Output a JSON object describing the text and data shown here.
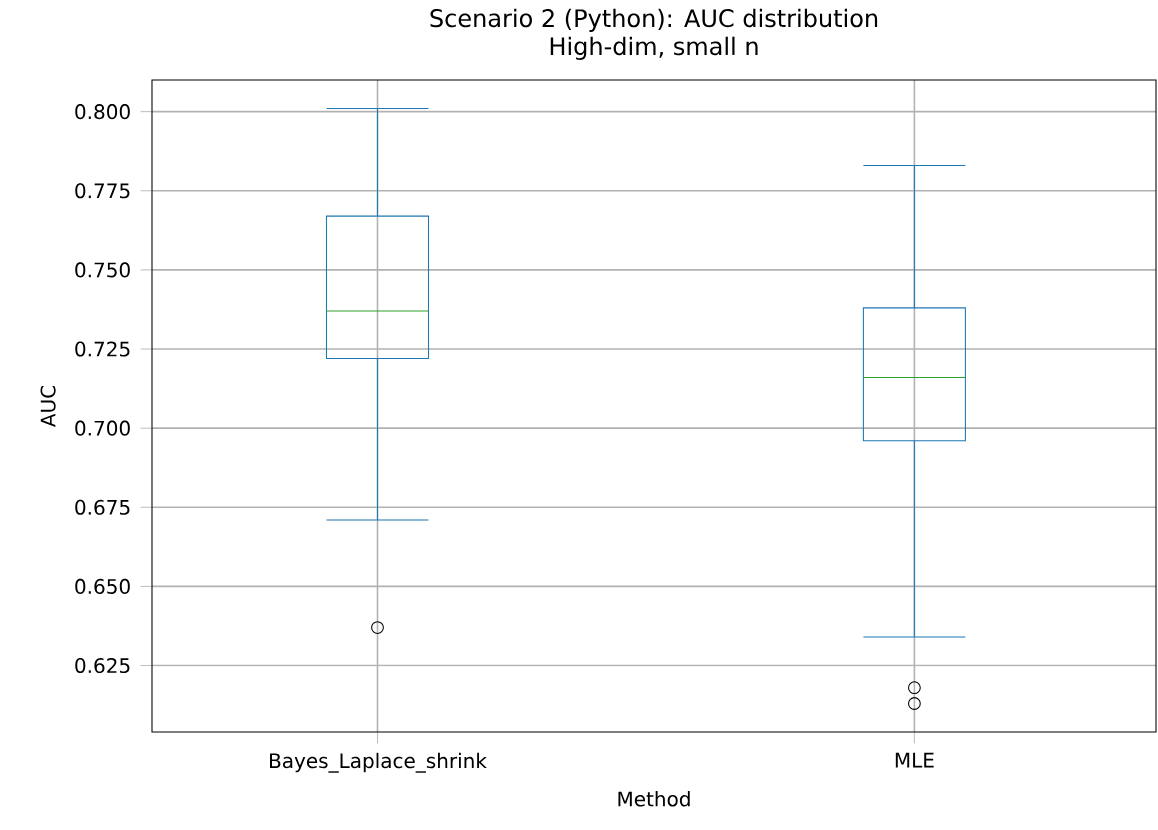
{
  "chart_data": {
    "type": "box",
    "title": "Scenario 2 (Python): AUC distribution",
    "subtitle": "High-dim, small n",
    "xlabel": "Method",
    "ylabel": "AUC",
    "categories": [
      "Bayes_Laplace_shrink",
      "MLE"
    ],
    "boxes": [
      {
        "low": 0.671,
        "q1": 0.722,
        "median": 0.737,
        "q3": 0.767,
        "high": 0.801,
        "outliers": [
          0.637
        ]
      },
      {
        "low": 0.634,
        "q1": 0.696,
        "median": 0.716,
        "q3": 0.738,
        "high": 0.783,
        "outliers": [
          0.618,
          0.613
        ]
      }
    ],
    "color": "#1f77b4",
    "ylim": [
      0.604,
      0.81
    ],
    "yticks": [
      0.625,
      {
        "value": 0.65,
        "label": "0.650"
      },
      0.675,
      {
        "value": 0.7,
        "label": "0.700"
      },
      0.725,
      {
        "value": 0.75,
        "label": "0.750"
      },
      0.775,
      {
        "value": 0.8,
        "label": "0.800"
      }
    ],
    "grid": true
  }
}
